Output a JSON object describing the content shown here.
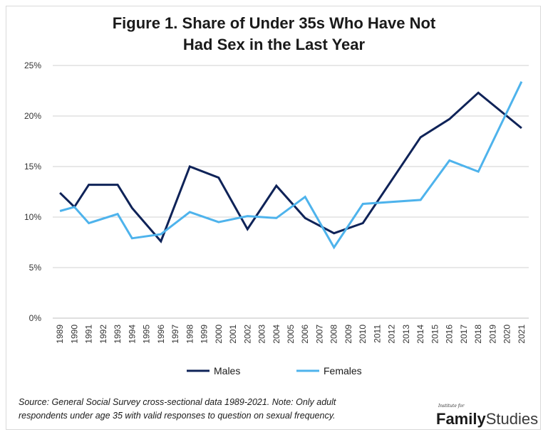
{
  "chart_data": {
    "type": "line",
    "title_line1": "Figure 1. Share of Under 35s Who Have Not",
    "title_line2": "Had Sex in the Last Year",
    "x": [
      "1989",
      "1990",
      "1991",
      "1992",
      "1993",
      "1994",
      "1995",
      "1996",
      "1997",
      "1998",
      "1999",
      "2000",
      "2001",
      "2002",
      "2003",
      "2004",
      "2005",
      "2006",
      "2007",
      "2008",
      "2009",
      "2010",
      "2011",
      "2012",
      "2013",
      "2014",
      "2015",
      "2016",
      "2017",
      "2018",
      "2019",
      "2020",
      "2021"
    ],
    "ylim": [
      0,
      25
    ],
    "y_ticks": [
      "0%",
      "5%",
      "10%",
      "15%",
      "20%",
      "25%"
    ],
    "y_tick_values": [
      0,
      5,
      10,
      15,
      20,
      25
    ],
    "grid": true,
    "legend_position": "bottom",
    "series": [
      {
        "name": "Males",
        "color": "#0f2358",
        "points": [
          [
            "1989",
            12.4
          ],
          [
            "1990",
            11.0
          ],
          [
            "1991",
            13.2
          ],
          [
            "1993",
            13.2
          ],
          [
            "1994",
            10.9
          ],
          [
            "1996",
            7.6
          ],
          [
            "1998",
            15.0
          ],
          [
            "2000",
            13.9
          ],
          [
            "2002",
            8.8
          ],
          [
            "2004",
            13.1
          ],
          [
            "2006",
            9.9
          ],
          [
            "2008",
            8.4
          ],
          [
            "2010",
            9.4
          ],
          [
            "2014",
            17.9
          ],
          [
            "2016",
            19.7
          ],
          [
            "2018",
            22.3
          ],
          [
            "2021",
            18.8
          ]
        ]
      },
      {
        "name": "Females",
        "color": "#4eb3ec",
        "points": [
          [
            "1989",
            10.6
          ],
          [
            "1990",
            11.0
          ],
          [
            "1991",
            9.4
          ],
          [
            "1993",
            10.3
          ],
          [
            "1994",
            7.9
          ],
          [
            "1996",
            8.3
          ],
          [
            "1998",
            10.5
          ],
          [
            "2000",
            9.5
          ],
          [
            "2002",
            10.1
          ],
          [
            "2004",
            9.9
          ],
          [
            "2006",
            12.0
          ],
          [
            "2008",
            7.0
          ],
          [
            "2010",
            11.3
          ],
          [
            "2014",
            11.7
          ],
          [
            "2016",
            15.6
          ],
          [
            "2018",
            14.5
          ],
          [
            "2021",
            23.4
          ]
        ]
      }
    ]
  },
  "source_note_line1": "Source: General Social Survey cross-sectional data 1989-2021. Note: Only adult",
  "source_note_line2": "respondents under age 35 with valid responses to question on sexual frequency.",
  "logo": {
    "small_text": "Institute for",
    "bold_text": "Family",
    "light_text": "Studies"
  }
}
